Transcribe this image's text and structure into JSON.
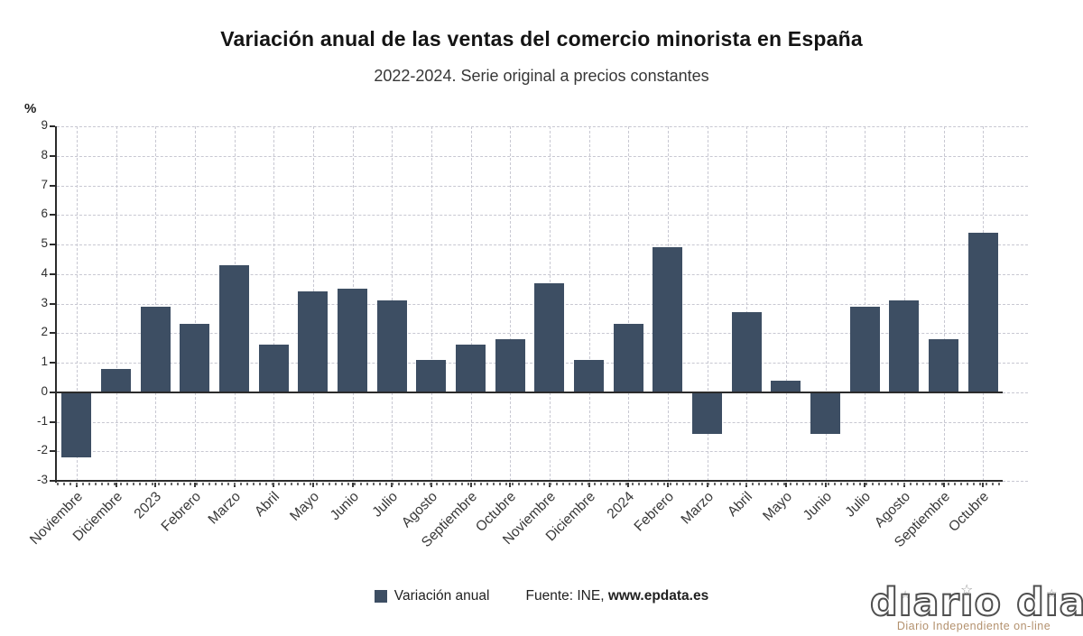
{
  "header": {
    "title": "Variación anual de las ventas del comercio minorista en España",
    "subtitle": "2022-2024. Serie original a precios constantes"
  },
  "chart_data": {
    "type": "bar",
    "title": "Variación anual de las ventas del comercio minorista en España",
    "subtitle": "2022-2024. Serie original a precios constantes",
    "ylabel": "%",
    "xlabel": "",
    "ylim": [
      -3,
      9
    ],
    "yticks": [
      9,
      8,
      7,
      6,
      5,
      4,
      3,
      2,
      1,
      0,
      -1,
      -2,
      -3
    ],
    "grid": true,
    "legend_position": "bottom",
    "bar_color": "#3d4e63",
    "categories": [
      "Noviembre",
      "Diciembre",
      "2023",
      "Febrero",
      "Marzo",
      "Abril",
      "Mayo",
      "Junio",
      "Julio",
      "Agosto",
      "Septiembre",
      "Octubre",
      "Noviembre",
      "Diciembre",
      "2024",
      "Febrero",
      "Marzo",
      "Abril",
      "Mayo",
      "Junio",
      "Julio",
      "Agosto",
      "Septiembre",
      "Octubre"
    ],
    "series": [
      {
        "name": "Variación anual",
        "values": [
          -2.2,
          0.8,
          2.9,
          2.3,
          4.3,
          1.6,
          3.4,
          3.5,
          3.1,
          1.1,
          1.6,
          1.8,
          3.7,
          1.1,
          2.3,
          4.9,
          -1.4,
          2.7,
          0.4,
          -1.4,
          2.9,
          3.1,
          1.8,
          5.4
        ]
      }
    ]
  },
  "legend": {
    "label": "Variación anual",
    "color": "#3d4e63"
  },
  "footer": {
    "source_prefix": "Fuente: INE, ",
    "source_link": "www.epdata.es"
  },
  "watermark": {
    "logo_text": "diario dia",
    "tagline": "Diario Independiente on-line"
  }
}
